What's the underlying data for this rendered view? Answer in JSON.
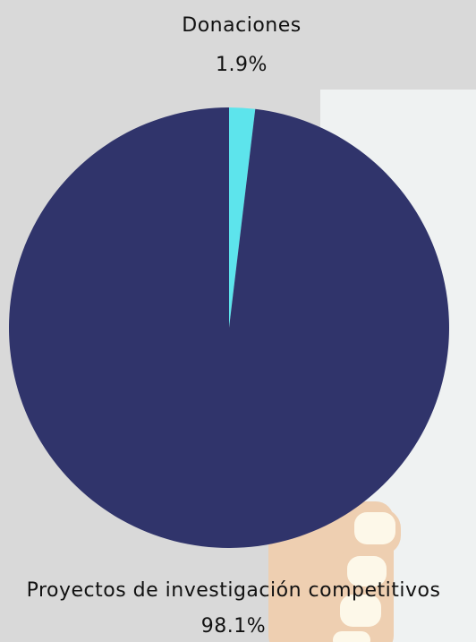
{
  "colors": {
    "background": "#d9d9d9",
    "panel": "#eff2f2",
    "slice_main": "#30346b",
    "slice_small": "#5de4ec",
    "hand_skin": "#eecfb1",
    "hand_nail": "#fdf8e9"
  },
  "decor": {
    "hand_icon": "hand-illustration"
  },
  "chart_data": {
    "type": "pie",
    "title": "",
    "slices": [
      {
        "label": "Donaciones",
        "value": 1.9,
        "value_label": "1.9%",
        "color": "#5de4ec"
      },
      {
        "label": "Proyectos de investigación competitivos",
        "value": 98.1,
        "value_label": "98.1%",
        "color": "#30346b"
      }
    ]
  }
}
